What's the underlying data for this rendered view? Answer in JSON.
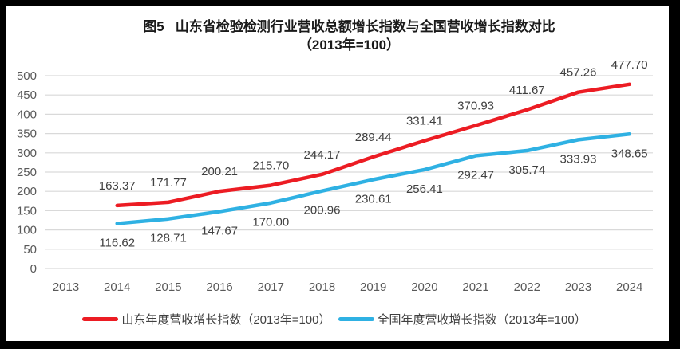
{
  "title": {
    "line1": "图5   山东省检验检测行业营收总额增长指数与全国营收增长指数对比",
    "line2": "（2013年=100）"
  },
  "chart_data": {
    "type": "line",
    "title": "图5 山东省检验检测行业营收总额增长指数与全国营收增长指数对比（2013年=100）",
    "x_categories": [
      "2013",
      "2014",
      "2015",
      "2016",
      "2017",
      "2018",
      "2019",
      "2020",
      "2021",
      "2022",
      "2023",
      "2024"
    ],
    "ylim": [
      0,
      500
    ],
    "ytick_step": 50,
    "yticks": [
      0,
      50,
      100,
      150,
      200,
      250,
      300,
      350,
      400,
      450,
      500
    ],
    "grid": true,
    "legend_position": "bottom",
    "colors": {
      "gridline": "#d9d9d9",
      "axis_text": "#595959",
      "data_label_text": "#404040"
    },
    "series": [
      {
        "name": "山东年度营收增长指数（2013年=100）",
        "color": "#ec1c23",
        "x": [
          "2014",
          "2015",
          "2016",
          "2017",
          "2018",
          "2019",
          "2020",
          "2021",
          "2022",
          "2023",
          "2024"
        ],
        "values": [
          163.37,
          171.77,
          200.21,
          215.7,
          244.17,
          289.44,
          331.41,
          370.93,
          411.67,
          457.26,
          477.7
        ],
        "labels": [
          "163.37",
          "171.77",
          "200.21",
          "215.70",
          "244.17",
          "289.44",
          "331.41",
          "370.93",
          "411.67",
          "457.26",
          "477.70"
        ],
        "label_position": "above"
      },
      {
        "name": "全国年度营收增长指数（2013年=100）",
        "color": "#2fb1e3",
        "x": [
          "2014",
          "2015",
          "2016",
          "2017",
          "2018",
          "2019",
          "2020",
          "2021",
          "2022",
          "2023",
          "2024"
        ],
        "values": [
          116.62,
          128.71,
          147.67,
          170.0,
          200.96,
          230.61,
          256.41,
          292.47,
          305.74,
          333.93,
          348.65
        ],
        "labels": [
          "116.62",
          "128.71",
          "147.67",
          "170.00",
          "200.96",
          "230.61",
          "256.41",
          "292.47",
          "305.74",
          "333.93",
          "348.65"
        ],
        "label_position": "below"
      }
    ]
  }
}
